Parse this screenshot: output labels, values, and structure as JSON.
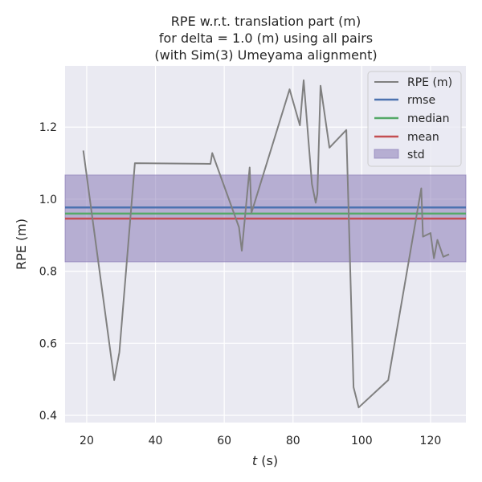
{
  "chart_data": {
    "type": "line",
    "title_lines": [
      "RPE w.r.t. translation part (m)",
      "for delta = 1.0 (m) using all pairs",
      "(with Sim(3) Umeyama alignment)"
    ],
    "xlabel_italic": "t",
    "xlabel_rest": " (s)",
    "ylabel": "RPE (m)",
    "xlim": [
      13.7,
      130.3
    ],
    "ylim": [
      0.38,
      1.37
    ],
    "xticks": [
      20,
      40,
      60,
      80,
      100,
      120
    ],
    "yticks": [
      0.4,
      0.6,
      0.8,
      1.0,
      1.2
    ],
    "ytick_labels": [
      "0.4",
      "0.6",
      "0.8",
      "1.0",
      "1.2"
    ],
    "legend_position": "top-right",
    "grid": true,
    "series": [
      {
        "name": "RPE (m)",
        "color": "#808080",
        "x": [
          19.0,
          28.0,
          29.5,
          34.0,
          56.0,
          56.5,
          64.3,
          65.1,
          67.4,
          67.9,
          79.0,
          82.0,
          83.1,
          85.5,
          86.6,
          87.1,
          88.0,
          90.6,
          95.5,
          97.6,
          99.1,
          107.7,
          117.3,
          117.8,
          120.0,
          121.0,
          122.0,
          123.7,
          125.4
        ],
        "y": [
          1.135,
          0.498,
          0.575,
          1.1,
          1.098,
          1.128,
          0.922,
          0.857,
          1.088,
          0.962,
          1.305,
          1.205,
          1.33,
          1.042,
          0.99,
          1.015,
          1.315,
          1.143,
          1.192,
          0.478,
          0.422,
          0.498,
          1.03,
          0.896,
          0.906,
          0.836,
          0.887,
          0.84,
          0.847
        ]
      }
    ],
    "stats": {
      "rmse": {
        "name": "rmse",
        "value": 0.977,
        "color": "#4c72b0"
      },
      "median": {
        "name": "median",
        "value": 0.96,
        "color": "#55a868"
      },
      "mean": {
        "name": "mean",
        "value": 0.946,
        "color": "#c44e52"
      },
      "std": {
        "name": "std",
        "range": [
          0.826,
          1.067
        ],
        "color": "#8172b2"
      }
    },
    "colors": {
      "plot_background": "#eaeaf2",
      "grid": "#ffffff",
      "text": "#262626"
    }
  }
}
